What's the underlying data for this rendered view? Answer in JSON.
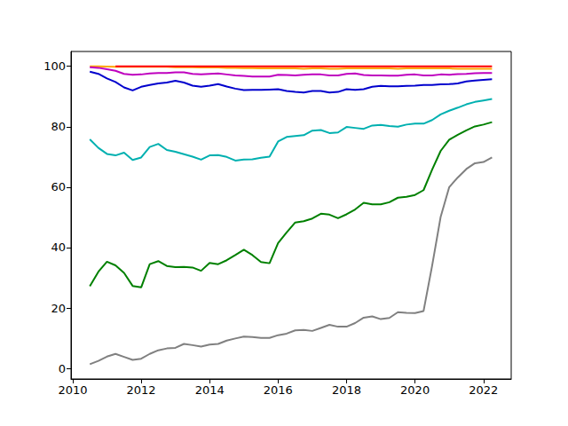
{
  "chart_data": {
    "type": "line",
    "x": [
      2010.5,
      2010.75,
      2011,
      2011.25,
      2011.5,
      2011.75,
      2012,
      2012.25,
      2012.5,
      2012.75,
      2013,
      2013.25,
      2013.5,
      2013.75,
      2014,
      2014.25,
      2014.5,
      2014.75,
      2015,
      2015.25,
      2015.5,
      2015.75,
      2016,
      2016.25,
      2016.5,
      2016.75,
      2017,
      2017.25,
      2017.5,
      2017.75,
      2018,
      2018.25,
      2018.5,
      2018.75,
      2019,
      2019.25,
      2019.5,
      2019.75,
      2020,
      2020.25,
      2020.5,
      2020.75,
      2021,
      2021.25,
      2021.5,
      2021.75,
      2022,
      2022.25
    ],
    "series": [
      {
        "color": "#ffa500",
        "values": [
          100,
          100,
          99.9,
          99.8,
          99.8,
          99.8,
          99.8,
          99.8,
          99.8,
          99.8,
          99.7,
          99.7,
          99.7,
          99.6,
          99.6,
          99.6,
          99.5,
          99.5,
          99.4,
          99.4,
          99.3,
          99.3,
          99.3,
          99.3,
          99.3,
          99.2,
          99.3,
          99.3,
          99.2,
          99.2,
          99.3,
          99.3,
          99.3,
          99.3,
          99.3,
          99.3,
          99.2,
          99.3,
          99.3,
          99.3,
          99.3,
          99.3,
          99.3,
          99.2,
          99.2,
          99.2,
          99.2,
          99.2
        ]
      },
      {
        "color": "#ff0000",
        "values": [
          null,
          null,
          null,
          100,
          100,
          100,
          100,
          100,
          100,
          100,
          100,
          100,
          100,
          100,
          100,
          100,
          100,
          100,
          100,
          100,
          100,
          100,
          100,
          100,
          100,
          100,
          100,
          100,
          100,
          100,
          100,
          100,
          100,
          100,
          100,
          100,
          100,
          100,
          100,
          100,
          100,
          100,
          100,
          100,
          100,
          100,
          100,
          100
        ]
      },
      {
        "color": "#bf00bf",
        "values": [
          99.7,
          99.5,
          99,
          98.5,
          97.5,
          97.2,
          97.3,
          97.6,
          97.8,
          97.8,
          98,
          98,
          97.5,
          97.3,
          97.5,
          97.6,
          97.3,
          97,
          96.8,
          96.6,
          96.6,
          96.6,
          97.2,
          97.1,
          97,
          97.2,
          97.3,
          97.3,
          97,
          97,
          97.5,
          97.6,
          97.1,
          97,
          97,
          96.9,
          96.9,
          97.2,
          97.3,
          97,
          97,
          97.3,
          97.2,
          97.4,
          97.5,
          97.7,
          97.8,
          97.8
        ]
      },
      {
        "color": "#0000cd",
        "values": [
          98.2,
          97.5,
          96,
          94.8,
          93,
          92,
          93.2,
          93.8,
          94.3,
          94.6,
          95.2,
          94.6,
          93.6,
          93.2,
          93.6,
          94.1,
          93.3,
          92.6,
          92.1,
          92.2,
          92.2,
          92.3,
          92.4,
          91.8,
          91.5,
          91.3,
          91.8,
          91.8,
          91.3,
          91.5,
          92.4,
          92.2,
          92.4,
          93.2,
          93.5,
          93.4,
          93.4,
          93.5,
          93.6,
          93.8,
          93.8,
          94,
          94.1,
          94.3,
          95,
          95.3,
          95.5,
          95.7
        ]
      },
      {
        "color": "#00b0b0",
        "values": [
          75.8,
          73,
          71,
          70.5,
          71.4,
          69,
          69.8,
          73.3,
          74.3,
          72.3,
          71.7,
          70.9,
          70.1,
          69.1,
          70.5,
          70.6,
          70,
          68.8,
          69.1,
          69.2,
          69.7,
          70.1,
          75.1,
          76.6,
          76.9,
          77.2,
          78.7,
          78.9,
          77.9,
          78.1,
          79.9,
          79.6,
          79.3,
          80.4,
          80.6,
          80.2,
          80,
          80.7,
          81,
          81,
          82.2,
          84.1,
          85.3,
          86.3,
          87.4,
          88.2,
          88.7,
          89.2
        ]
      },
      {
        "color": "#008000",
        "values": [
          27.2,
          32,
          35.3,
          34.1,
          31.6,
          27.3,
          26.8,
          34.5,
          35.5,
          33.9,
          33.5,
          33.6,
          33.4,
          32.3,
          34.9,
          34.5,
          35.8,
          37.5,
          39.3,
          37.5,
          35.2,
          34.8,
          41.5,
          45,
          48.3,
          48.7,
          49.6,
          51.2,
          50.9,
          49.7,
          51,
          52.6,
          54.8,
          54.3,
          54.3,
          55,
          56.5,
          56.8,
          57.4,
          59,
          65.8,
          72,
          75.7,
          77.3,
          78.8,
          80.1,
          80.7,
          81.5
        ]
      },
      {
        "color": "#808080",
        "values": [
          1.4,
          2.5,
          3.9,
          4.8,
          3.8,
          2.8,
          3.2,
          4.8,
          6,
          6.6,
          6.8,
          8.1,
          7.7,
          7.2,
          7.9,
          8.1,
          9.2,
          9.9,
          10.5,
          10.4,
          10.1,
          10.1,
          11,
          11.5,
          12.6,
          12.7,
          12.4,
          13.4,
          14.4,
          13.8,
          13.8,
          15,
          16.8,
          17.2,
          16.3,
          16.7,
          18.6,
          18.4,
          18.3,
          19,
          34,
          50.2,
          60,
          63.2,
          66,
          67.9,
          68.3,
          69.8
        ]
      }
    ],
    "xlim": [
      2009.95,
      2022.81
    ],
    "xticks": [
      2010,
      2012,
      2014,
      2016,
      2018,
      2020,
      2022
    ],
    "ylim": [
      -3.5,
      104.9
    ],
    "yticks": [
      0,
      20,
      40,
      60,
      80,
      100
    ],
    "grid": false
  }
}
